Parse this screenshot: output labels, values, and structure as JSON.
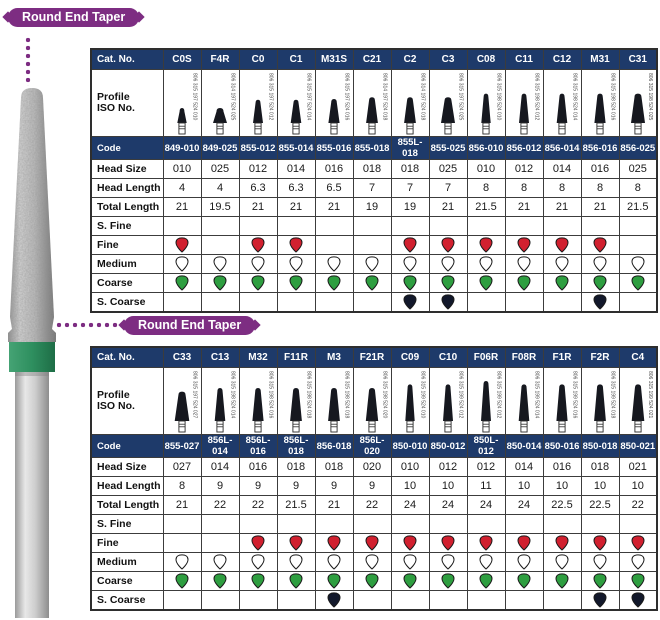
{
  "badge_label": "Round End Taper",
  "colors": {
    "header_navy": "#1e3a6a",
    "badge_purple": "#7d2d82",
    "grit_red": "#d1202f",
    "grit_green": "#2e9e40",
    "grit_black": "#12182b",
    "grit_white": "#ffffff",
    "band_green": "#2e8f5f"
  },
  "row_labels": {
    "cat_no": "Cat. No.",
    "profile_line1": "Profile",
    "profile_line2": "ISO No.",
    "code": "Code",
    "head_size": "Head Size",
    "head_length": "Head Length",
    "total_length": "Total Length",
    "s_fine": "S. Fine",
    "fine": "Fine",
    "medium": "Medium",
    "coarse": "Coarse",
    "s_coarse": "S. Coarse"
  },
  "tables": [
    {
      "name": "round-end-taper-top",
      "columns": [
        {
          "cat": "C0S",
          "iso": "806 315 197 524 010",
          "code": "849-010",
          "head_size": "010",
          "head_length": "4",
          "total_length": "21",
          "s_fine": "",
          "fine": "red",
          "medium": "white",
          "coarse": "green",
          "s_coarse": ""
        },
        {
          "cat": "F4R",
          "iso": "806 314 197 524 025",
          "code": "849-025",
          "head_size": "025",
          "head_length": "4",
          "total_length": "19.5",
          "s_fine": "",
          "fine": "",
          "medium": "white",
          "coarse": "green",
          "s_coarse": ""
        },
        {
          "cat": "C0",
          "iso": "806 315 197 524 012",
          "code": "855-012",
          "head_size": "012",
          "head_length": "6.3",
          "total_length": "21",
          "s_fine": "",
          "fine": "red",
          "medium": "white",
          "coarse": "green",
          "s_coarse": ""
        },
        {
          "cat": "C1",
          "iso": "806 315 197 524 014",
          "code": "855-014",
          "head_size": "014",
          "head_length": "6.3",
          "total_length": "21",
          "s_fine": "",
          "fine": "red",
          "medium": "white",
          "coarse": "green",
          "s_coarse": ""
        },
        {
          "cat": "M31S",
          "iso": "806 315 197 524 016",
          "code": "855-016",
          "head_size": "016",
          "head_length": "6.5",
          "total_length": "21",
          "s_fine": "",
          "fine": "",
          "medium": "white",
          "coarse": "green",
          "s_coarse": ""
        },
        {
          "cat": "C21",
          "iso": "806 314 197 524 018",
          "code": "855-018",
          "head_size": "018",
          "head_length": "7",
          "total_length": "19",
          "s_fine": "",
          "fine": "",
          "medium": "white",
          "coarse": "green",
          "s_coarse": ""
        },
        {
          "cat": "C2",
          "iso": "806 314 197 524 018",
          "code": "855L-018",
          "head_size": "018",
          "head_length": "7",
          "total_length": "19",
          "s_fine": "",
          "fine": "red",
          "medium": "white",
          "coarse": "green",
          "s_coarse": "black"
        },
        {
          "cat": "C3",
          "iso": "806 315 197 524 025",
          "code": "855-025",
          "head_size": "025",
          "head_length": "7",
          "total_length": "21",
          "s_fine": "",
          "fine": "red",
          "medium": "white",
          "coarse": "green",
          "s_coarse": "black"
        },
        {
          "cat": "C08",
          "iso": "806 315 198 524 010",
          "code": "856-010",
          "head_size": "010",
          "head_length": "8",
          "total_length": "21.5",
          "s_fine": "",
          "fine": "red",
          "medium": "white",
          "coarse": "green",
          "s_coarse": ""
        },
        {
          "cat": "C11",
          "iso": "806 315 198 524 012",
          "code": "856-012",
          "head_size": "012",
          "head_length": "8",
          "total_length": "21",
          "s_fine": "",
          "fine": "red",
          "medium": "white",
          "coarse": "green",
          "s_coarse": ""
        },
        {
          "cat": "C12",
          "iso": "806 315 198 524 014",
          "code": "856-014",
          "head_size": "014",
          "head_length": "8",
          "total_length": "21",
          "s_fine": "",
          "fine": "red",
          "medium": "white",
          "coarse": "green",
          "s_coarse": ""
        },
        {
          "cat": "M31",
          "iso": "806 315 198 524 016",
          "code": "856-016",
          "head_size": "016",
          "head_length": "8",
          "total_length": "21",
          "s_fine": "",
          "fine": "red",
          "medium": "white",
          "coarse": "green",
          "s_coarse": "black"
        },
        {
          "cat": "C31",
          "iso": "806 315 198 524 025",
          "code": "856-025",
          "head_size": "025",
          "head_length": "8",
          "total_length": "21.5",
          "s_fine": "",
          "fine": "",
          "medium": "white",
          "coarse": "green",
          "s_coarse": ""
        }
      ]
    },
    {
      "name": "round-end-taper-bottom",
      "columns": [
        {
          "cat": "C33",
          "iso": "806 315 197 524 027",
          "code": "855-027",
          "head_size": "027",
          "head_length": "8",
          "total_length": "21",
          "s_fine": "",
          "fine": "",
          "medium": "white",
          "coarse": "green",
          "s_coarse": ""
        },
        {
          "cat": "C13",
          "iso": "806 315 198 524 014",
          "code": "856L-014",
          "head_size": "014",
          "head_length": "9",
          "total_length": "22",
          "s_fine": "",
          "fine": "",
          "medium": "white",
          "coarse": "green",
          "s_coarse": ""
        },
        {
          "cat": "M32",
          "iso": "806 315 198 524 016",
          "code": "856L-016",
          "head_size": "016",
          "head_length": "9",
          "total_length": "22",
          "s_fine": "",
          "fine": "red",
          "medium": "white",
          "coarse": "green",
          "s_coarse": ""
        },
        {
          "cat": "F11R",
          "iso": "806 315 198 524 018",
          "code": "856L-018",
          "head_size": "018",
          "head_length": "9",
          "total_length": "21.5",
          "s_fine": "",
          "fine": "red",
          "medium": "white",
          "coarse": "green",
          "s_coarse": ""
        },
        {
          "cat": "M3",
          "iso": "806 315 198 524 018",
          "code": "856-018",
          "head_size": "018",
          "head_length": "9",
          "total_length": "21",
          "s_fine": "",
          "fine": "red",
          "medium": "white",
          "coarse": "green",
          "s_coarse": "black"
        },
        {
          "cat": "F21R",
          "iso": "806 315 198 524 020",
          "code": "856L-020",
          "head_size": "020",
          "head_length": "9",
          "total_length": "22",
          "s_fine": "",
          "fine": "red",
          "medium": "white",
          "coarse": "green",
          "s_coarse": ""
        },
        {
          "cat": "C09",
          "iso": "806 315 199 524 010",
          "code": "850-010",
          "head_size": "010",
          "head_length": "10",
          "total_length": "24",
          "s_fine": "",
          "fine": "red",
          "medium": "white",
          "coarse": "green",
          "s_coarse": ""
        },
        {
          "cat": "C10",
          "iso": "806 315 199 524 012",
          "code": "850-012",
          "head_size": "012",
          "head_length": "10",
          "total_length": "24",
          "s_fine": "",
          "fine": "red",
          "medium": "white",
          "coarse": "green",
          "s_coarse": ""
        },
        {
          "cat": "F06R",
          "iso": "806 315 199 524 012",
          "code": "850L-012",
          "head_size": "012",
          "head_length": "11",
          "total_length": "24",
          "s_fine": "",
          "fine": "red",
          "medium": "white",
          "coarse": "green",
          "s_coarse": ""
        },
        {
          "cat": "F08R",
          "iso": "806 315 199 524 014",
          "code": "850-014",
          "head_size": "014",
          "head_length": "10",
          "total_length": "24",
          "s_fine": "",
          "fine": "red",
          "medium": "white",
          "coarse": "green",
          "s_coarse": ""
        },
        {
          "cat": "F1R",
          "iso": "806 315 199 524 016",
          "code": "850-016",
          "head_size": "016",
          "head_length": "10",
          "total_length": "22.5",
          "s_fine": "",
          "fine": "red",
          "medium": "white",
          "coarse": "green",
          "s_coarse": ""
        },
        {
          "cat": "F2R",
          "iso": "806 315 199 524 018",
          "code": "850-018",
          "head_size": "018",
          "head_length": "10",
          "total_length": "22.5",
          "s_fine": "",
          "fine": "red",
          "medium": "white",
          "coarse": "green",
          "s_coarse": "black"
        },
        {
          "cat": "C4",
          "iso": "806 315 199 524 021",
          "code": "850-021",
          "head_size": "021",
          "head_length": "10",
          "total_length": "22",
          "s_fine": "",
          "fine": "red",
          "medium": "white",
          "coarse": "green",
          "s_coarse": "black"
        }
      ]
    }
  ]
}
